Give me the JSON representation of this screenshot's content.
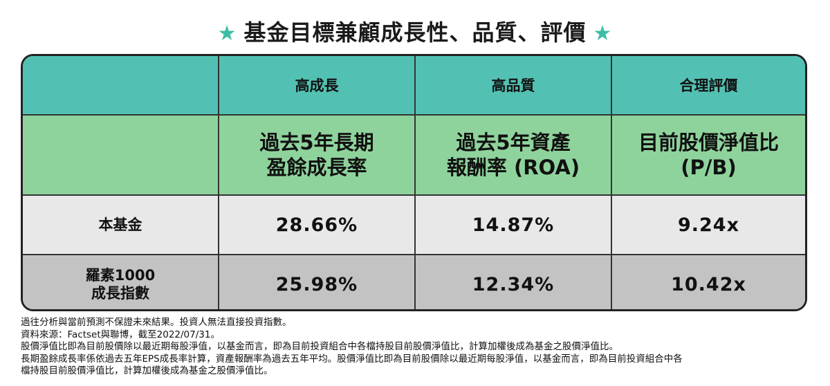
{
  "title": {
    "text": "基金目標兼顧成長性、品質、評價",
    "star": "★"
  },
  "colors": {
    "star": "#3dbda6",
    "header_row": "#52c1b3",
    "metric_row": "#8fd39c",
    "fund_row": "#e8e8e8",
    "index_row": "#c3c3c4"
  },
  "chart_data": {
    "type": "table",
    "columns": [
      "",
      "高成長",
      "高品質",
      "合理評價"
    ],
    "metrics": [
      [
        "過去5年長期",
        "盈餘成長率"
      ],
      [
        "過去5年資產",
        "報酬率 (ROA)"
      ],
      [
        "目前股價淨值比",
        "(P/B)"
      ]
    ],
    "rows": [
      {
        "label": [
          "本基金"
        ],
        "values": [
          "28.66%",
          "14.87%",
          "9.24x"
        ]
      },
      {
        "label": [
          "羅素1000",
          "成長指數"
        ],
        "values": [
          "25.98%",
          "12.34%",
          "10.42x"
        ]
      }
    ]
  },
  "notes": [
    "過往分析與當前預測不保證未來結果。投資人無法直接投資指數。",
    "資料來源：Factset與聯博，截至2022/07/31。",
    "股價淨值比即為目前股價除以最近期每股淨值，以基金而言，即為目前投資組合中各檔持股目前股價淨值比，計算加權後成為基金之股價淨值比。",
    "長期盈餘成長率係依過去五年EPS成長率計算，資產報酬率為過去五年平均。股價淨值比即為目前股價除以最近期每股淨值，以基金而言，即為目前投資組合中各",
    "檔持股目前股價淨值比，計算加權後成為基金之股價淨值比。"
  ]
}
